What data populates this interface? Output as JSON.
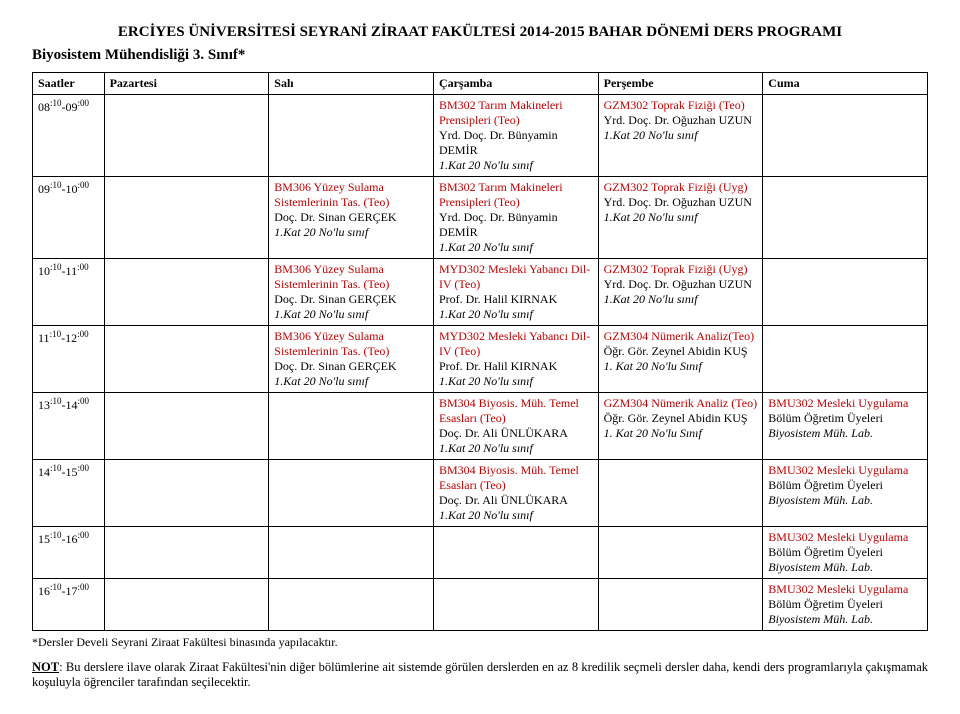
{
  "title": "ERCİYES ÜNİVERSİTESİ SEYRANİ ZİRAAT FAKÜLTESİ 2014-2015 BAHAR DÖNEMİ DERS PROGRAMI",
  "subtitle": "Biyosistem Mühendisliği 3. Sınıf*",
  "headers": {
    "time": "Saatler",
    "mon": "Pazartesi",
    "tue": "Salı",
    "wed": "Çarşamba",
    "thu": "Perşembe",
    "fri": "Cuma"
  },
  "times": {
    "r1": "08:10-09:00",
    "r2": "09:10-10:00",
    "r3": "10:10-11:00",
    "r4": "11:10-12:00",
    "r5": "13:10-14:00",
    "r6": "14:10-15:00",
    "r7": "15:10-16:00",
    "r8": "16:10-17:00"
  },
  "tue": {
    "r2": {
      "l1": "BM306 Yüzey Sulama Sistemlerinin Tas. (Teo)",
      "l2": "Doç. Dr. Sinan GERÇEK",
      "l3": "1.Kat 20 No'lu sınıf"
    },
    "r3": {
      "l1": "BM306 Yüzey Sulama Sistemlerinin Tas. (Teo)",
      "l2": "Doç. Dr. Sinan GERÇEK",
      "l3": "1.Kat 20 No'lu sınıf"
    },
    "r4": {
      "l1": "BM306 Yüzey Sulama Sistemlerinin Tas. (Teo)",
      "l2": "Doç. Dr. Sinan GERÇEK",
      "l3": "1.Kat 20 No'lu sınıf"
    }
  },
  "wed": {
    "r1": {
      "l1": "BM302 Tarım Makineleri Prensipleri (Teo)",
      "l2": "Yrd. Doç. Dr. Bünyamin DEMİR",
      "l3": "1.Kat 20 No'lu sınıf"
    },
    "r2": {
      "l1": "BM302 Tarım Makineleri Prensipleri (Teo)",
      "l2": "Yrd. Doç. Dr. Bünyamin DEMİR",
      "l3": "1.Kat 20 No'lu sınıf"
    },
    "r3": {
      "l1": "MYD302 Mesleki Yabancı Dil-IV (Teo)",
      "l2": "Prof. Dr. Halil KIRNAK",
      "l3": "1.Kat 20 No'lu sınıf"
    },
    "r4": {
      "l1": "MYD302 Mesleki Yabancı Dil-IV (Teo)",
      "l2": "Prof. Dr. Halil KIRNAK",
      "l3": "1.Kat 20 No'lu sınıf"
    },
    "r5": {
      "l1": "BM304 Biyosis. Müh. Temel Esasları (Teo)",
      "l2": "Doç. Dr. Ali ÜNLÜKARA",
      "l3": "1.Kat 20 No'lu sınıf"
    },
    "r6": {
      "l1": "BM304 Biyosis. Müh. Temel Esasları (Teo)",
      "l2": "Doç. Dr. Ali ÜNLÜKARA",
      "l3": "1.Kat 20 No'lu sınıf"
    }
  },
  "thu": {
    "r1": {
      "l1": "GZM302 Toprak Fiziği (Teo)",
      "l2": "Yrd. Doç. Dr. Oğuzhan UZUN",
      "l3": "1.Kat 20 No'lu sınıf"
    },
    "r2": {
      "l1": "GZM302 Toprak Fiziği (Uyg)",
      "l2": "Yrd. Doç. Dr. Oğuzhan UZUN",
      "l3": "1.Kat 20 No'lu sınıf"
    },
    "r3": {
      "l1": "GZM302 Toprak Fiziği (Uyg)",
      "l2": "Yrd. Doç. Dr. Oğuzhan UZUN",
      "l3": "1.Kat 20 No'lu sınıf"
    },
    "r4": {
      "l1": "GZM304 Nümerik Analiz(Teo)",
      "l2": "Öğr. Gör. Zeynel Abidin KUŞ",
      "l3": "1. Kat 20 No'lu Sınıf"
    },
    "r5": {
      "l1": "GZM304 Nümerik Analiz (Teo)",
      "l2": "Öğr. Gör. Zeynel Abidin KUŞ",
      "l3": "1. Kat 20 No'lu Sınıf"
    }
  },
  "fri": {
    "r5": {
      "l1": "BMU302 Mesleki Uygulama",
      "l2": "Bölüm Öğretim Üyeleri",
      "l3": "Biyosistem Müh. Lab."
    },
    "r6": {
      "l1": "BMU302 Mesleki Uygulama",
      "l2": "Bölüm Öğretim Üyeleri",
      "l3": "Biyosistem Müh. Lab."
    },
    "r7": {
      "l1": "BMU302 Mesleki Uygulama",
      "l2": "Bölüm Öğretim Üyeleri",
      "l3": "Biyosistem Müh. Lab."
    },
    "r8": {
      "l1": "BMU302 Mesleki Uygulama",
      "l2": "Bölüm Öğretim Üyeleri",
      "l3": "Biyosistem Müh. Lab."
    }
  },
  "footnote": "*Dersler Develi Seyrani Ziraat Fakültesi binasında yapılacaktır.",
  "note_label": "NOT",
  "note_body": ": Bu derslere ilave olarak Ziraat Fakültesi'nin diğer bölümlerine ait sistemde görülen derslerden en az 8 kredilik seçmeli dersler daha, kendi ders programlarıyla çakışmamak koşuluyla öğrenciler tarafından seçilecektir."
}
